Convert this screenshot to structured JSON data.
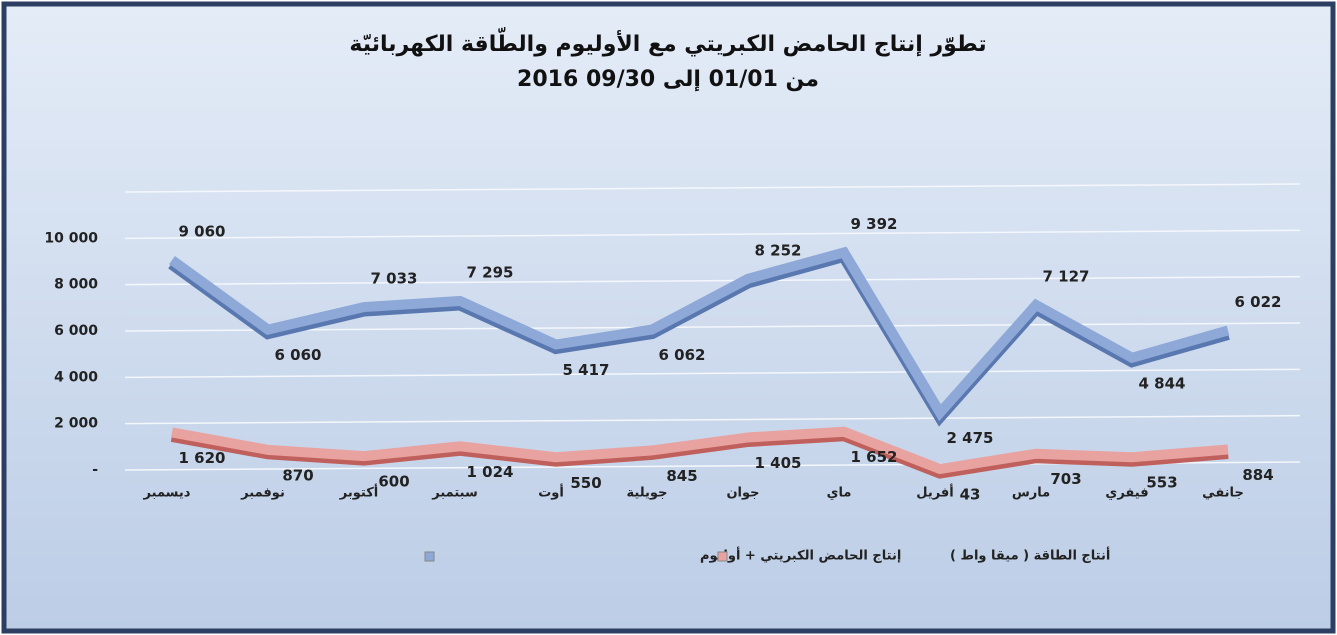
{
  "chart_data": {
    "type": "line",
    "title": "تطوّر إنتاج الحامض الكبريتي مع الأوليوم والطّاقة الكهربائيّة",
    "subtitle": "من 01/01 إلى 09/30 2016",
    "categories": [
      "ديسمبر",
      "نوفمبر",
      "أكتوبر",
      "سبتمبر",
      "أوت",
      "جويلية",
      "جوان",
      "ماي",
      "أفريل",
      "مارس",
      "فيفري",
      "جانفي"
    ],
    "series": [
      {
        "name": "إنتاج الحامض الكبريتي + أوليوم",
        "color": "#8ea9d8",
        "values": [
          9060,
          6060,
          7033,
          7295,
          5417,
          6062,
          8252,
          9392,
          2475,
          7127,
          4844,
          6022
        ],
        "value_labels": [
          "9 060",
          "6 060",
          "7 033",
          "7 295",
          "5 417",
          "6 062",
          "8 252",
          "9 392",
          "2 475",
          "7 127",
          "4 844",
          "6 022"
        ]
      },
      {
        "name": "أنتاج الطاقة ( ميقا واط )",
        "color": "#e8a3a0",
        "values": [
          1620,
          870,
          600,
          1024,
          550,
          845,
          1405,
          1652,
          43,
          703,
          553,
          884
        ],
        "value_labels": [
          "1 620",
          "870",
          "600",
          "1 024",
          "550",
          "845",
          "1 405",
          "1 652",
          "43",
          "703",
          "553",
          "884"
        ]
      }
    ],
    "ylim": [
      0,
      12000
    ],
    "yticks": [
      {
        "value": 0,
        "label": "-"
      },
      {
        "value": 2000,
        "label": "2 000"
      },
      {
        "value": 4000,
        "label": "4 000"
      },
      {
        "value": 6000,
        "label": "6 000"
      },
      {
        "value": 8000,
        "label": "8 000"
      },
      {
        "value": 10000,
        "label": "10 000"
      }
    ],
    "grid": true
  }
}
